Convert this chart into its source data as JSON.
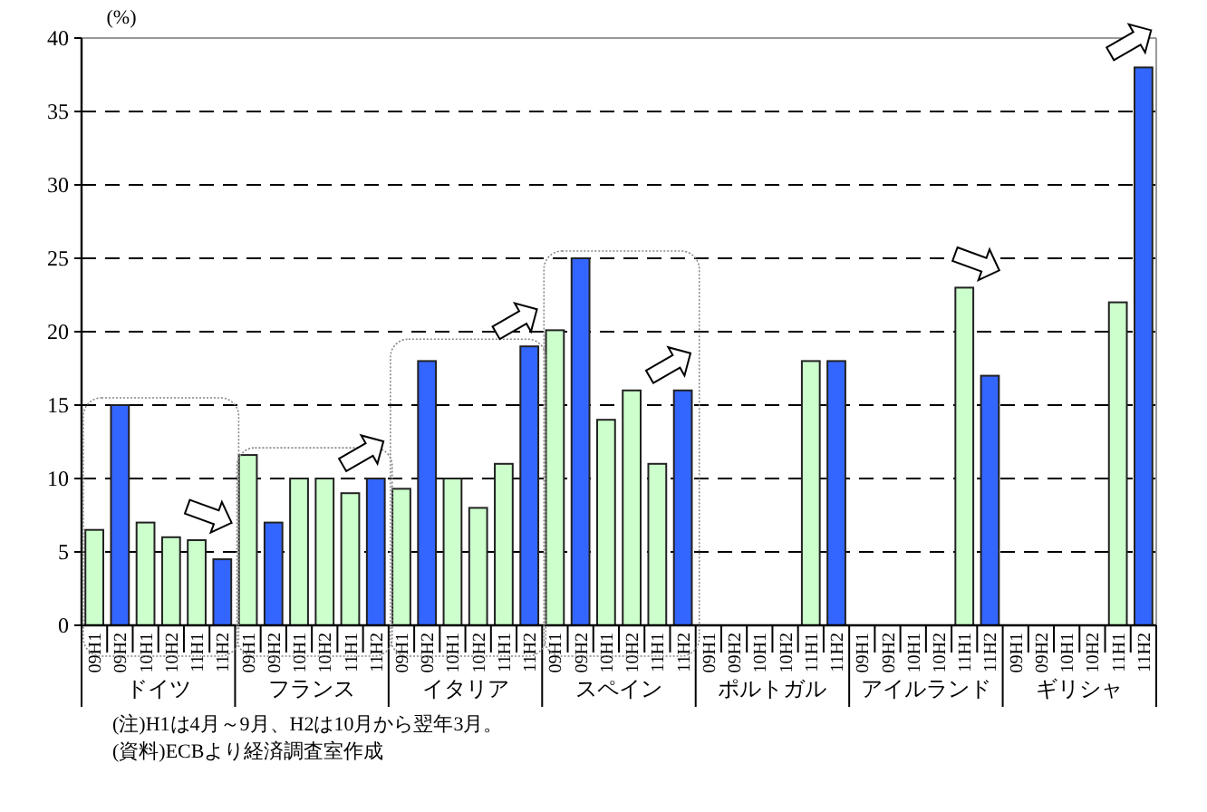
{
  "chart_data": {
    "type": "bar",
    "ylabel": "(%)",
    "categories": [
      "09H1",
      "09H2",
      "10H1",
      "10H2",
      "11H1",
      "11H2",
      "09H1",
      "09H2",
      "10H1",
      "10H2",
      "11H1",
      "11H2",
      "09H1",
      "09H2",
      "10H1",
      "10H2",
      "11H1",
      "11H2",
      "09H1",
      "09H2",
      "10H1",
      "10H2",
      "11H1",
      "11H2",
      "09H1",
      "09H2",
      "10H1",
      "10H2",
      "11H1",
      "11H2",
      "09H1",
      "09H2",
      "10H1",
      "10H2",
      "11H1",
      "11H2",
      "09H1",
      "09H2",
      "10H1",
      "10H2",
      "11H1",
      "11H2"
    ],
    "values": [
      6.5,
      15,
      7,
      6,
      5.8,
      4.5,
      11.6,
      7,
      10,
      10,
      9,
      10,
      9.3,
      18,
      10,
      8,
      11,
      19,
      20.1,
      25,
      14,
      16,
      11,
      16,
      null,
      null,
      null,
      null,
      18,
      18,
      null,
      null,
      null,
      null,
      23,
      17,
      null,
      null,
      null,
      null,
      22,
      38
    ],
    "colors": [
      "#ccffcc",
      "#3366ff",
      "#ccffcc",
      "#ccffcc",
      "#ccffcc",
      "#3366ff",
      "#ccffcc",
      "#3366ff",
      "#ccffcc",
      "#ccffcc",
      "#ccffcc",
      "#3366ff",
      "#ccffcc",
      "#3366ff",
      "#ccffcc",
      "#ccffcc",
      "#ccffcc",
      "#3366ff",
      "#ccffcc",
      "#3366ff",
      "#ccffcc",
      "#ccffcc",
      "#ccffcc",
      "#3366ff",
      null,
      null,
      null,
      null,
      "#ccffcc",
      "#3366ff",
      null,
      null,
      null,
      null,
      "#ccffcc",
      "#3366ff",
      null,
      null,
      null,
      null,
      "#ccffcc",
      "#3366ff"
    ],
    "ylim": [
      0,
      40
    ],
    "yticks": [
      0,
      5,
      10,
      15,
      20,
      25,
      30,
      35,
      40
    ],
    "grid": "y",
    "annotations": [
      "ドイツ",
      "フランス",
      "イタリア",
      "スペイン",
      "ポルトガル",
      "アイルランド",
      "ギリシャ",
      "(注)H1は4月～9月、H2は10月から翌年3月。",
      "(資料)ECBより経済調査室作成"
    ]
  }
}
